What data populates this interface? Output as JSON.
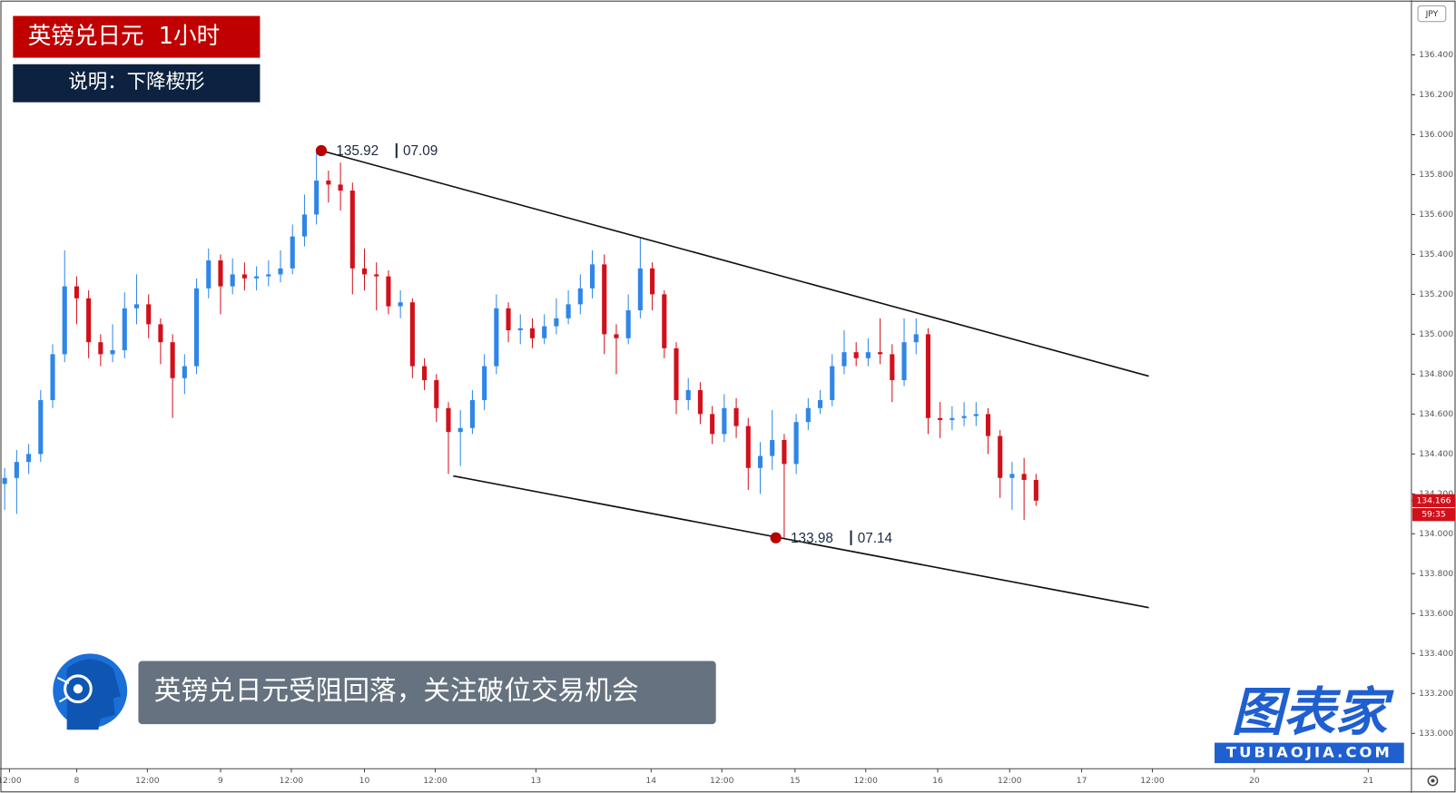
{
  "chart_data": {
    "type": "candlestick",
    "title": "英镑兑日元  1小时",
    "subtitle": "说明：下降楔形",
    "caption": "英镑兑日元受阻回落，关注破位交易机会",
    "brand": "图表家",
    "brand_url": "TUBIAOJIA.COM",
    "currency": "JPY",
    "countdown": "59:35",
    "last_price": {
      "value": 134.166,
      "label": "134.166"
    },
    "up_color": "#2f86e6",
    "down_color": "#d0111b",
    "x": [
      0,
      1,
      2,
      3,
      4,
      5,
      6,
      7,
      8,
      9,
      10,
      11,
      12,
      13,
      14,
      15,
      16,
      17,
      18,
      19,
      20,
      21,
      22,
      23,
      24,
      25,
      26,
      27,
      28,
      29,
      30,
      31,
      32,
      33,
      34,
      35,
      36,
      37,
      38,
      39,
      40,
      41,
      42,
      43,
      44,
      45,
      46,
      47,
      48,
      49,
      50,
      51,
      52,
      53,
      54,
      55,
      56,
      57,
      58,
      59,
      60,
      61,
      62,
      63,
      64,
      65,
      66,
      67,
      68,
      69,
      70,
      71,
      72,
      73,
      74,
      75,
      76,
      77,
      78,
      79,
      80,
      81,
      82,
      83,
      84,
      85,
      86
    ],
    "open": [
      134.25,
      134.28,
      134.36,
      134.4,
      134.67,
      134.9,
      135.24,
      135.18,
      134.96,
      134.9,
      134.92,
      135.13,
      135.15,
      135.05,
      134.96,
      134.78,
      134.84,
      135.23,
      135.37,
      135.24,
      135.3,
      135.28,
      135.29,
      135.3,
      135.33,
      135.49,
      135.6,
      135.77,
      135.75,
      135.72,
      135.33,
      135.3,
      135.29,
      135.14,
      135.16,
      134.84,
      134.77,
      134.63,
      134.51,
      134.53,
      134.67,
      134.84,
      135.13,
      135.02,
      135.03,
      134.98,
      135.04,
      135.08,
      135.15,
      135.23,
      135.35,
      135.0,
      134.98,
      135.12,
      135.33,
      135.2,
      134.93,
      134.67,
      134.72,
      134.6,
      134.5,
      134.63,
      134.54,
      134.33,
      134.39,
      134.47,
      134.35,
      134.56,
      134.63,
      134.67,
      134.84,
      134.91,
      134.88,
      134.91,
      134.9,
      134.77,
      134.96,
      135.0,
      134.58,
      134.57,
      134.58,
      134.59,
      134.6,
      134.49,
      134.28,
      134.3,
      134.27
    ],
    "high": [
      134.33,
      134.42,
      134.45,
      134.72,
      134.95,
      135.42,
      135.29,
      135.22,
      135.0,
      135.05,
      135.21,
      135.3,
      135.2,
      135.08,
      135.0,
      134.9,
      135.28,
      135.43,
      135.4,
      135.38,
      135.36,
      135.34,
      135.37,
      135.42,
      135.55,
      135.7,
      135.92,
      135.82,
      135.86,
      135.76,
      135.43,
      135.36,
      135.32,
      135.22,
      135.18,
      134.88,
      134.8,
      134.66,
      134.62,
      134.72,
      134.9,
      135.2,
      135.16,
      135.1,
      135.08,
      135.1,
      135.18,
      135.22,
      135.3,
      135.42,
      135.4,
      135.05,
      135.2,
      135.48,
      135.36,
      135.22,
      134.96,
      134.78,
      134.76,
      134.64,
      134.7,
      134.68,
      134.58,
      134.46,
      134.62,
      134.5,
      134.6,
      134.68,
      134.72,
      134.9,
      135.02,
      134.96,
      134.98,
      135.08,
      134.95,
      135.08,
      135.08,
      135.03,
      134.66,
      134.64,
      134.66,
      134.66,
      134.63,
      134.52,
      134.36,
      134.38,
      134.3
    ],
    "low": [
      134.12,
      134.1,
      134.3,
      134.36,
      134.63,
      134.86,
      135.05,
      134.88,
      134.84,
      134.86,
      134.88,
      135.05,
      134.98,
      134.85,
      134.58,
      134.7,
      134.8,
      135.18,
      135.1,
      135.2,
      135.22,
      135.22,
      135.24,
      135.26,
      135.3,
      135.44,
      135.55,
      135.66,
      135.62,
      135.2,
      135.22,
      135.12,
      135.1,
      135.08,
      134.78,
      134.72,
      134.56,
      134.3,
      134.34,
      134.5,
      134.62,
      134.8,
      134.96,
      134.95,
      134.93,
      134.95,
      135.0,
      135.05,
      135.1,
      135.18,
      134.9,
      134.8,
      134.95,
      135.08,
      135.12,
      134.88,
      134.6,
      134.62,
      134.55,
      134.45,
      134.46,
      134.48,
      134.22,
      134.2,
      134.32,
      133.98,
      134.3,
      134.52,
      134.6,
      134.64,
      134.8,
      134.84,
      134.84,
      134.85,
      134.66,
      134.74,
      134.9,
      134.5,
      134.48,
      134.52,
      134.54,
      134.54,
      134.4,
      134.18,
      134.12,
      134.07,
      134.14
    ],
    "close": [
      134.28,
      134.36,
      134.4,
      134.67,
      134.9,
      135.24,
      135.18,
      134.96,
      134.9,
      134.92,
      135.13,
      135.15,
      135.05,
      134.96,
      134.78,
      134.84,
      135.23,
      135.37,
      135.24,
      135.3,
      135.28,
      135.29,
      135.3,
      135.33,
      135.49,
      135.6,
      135.77,
      135.75,
      135.72,
      135.33,
      135.3,
      135.29,
      135.14,
      135.16,
      134.84,
      134.77,
      134.63,
      134.51,
      134.53,
      134.67,
      134.84,
      135.13,
      135.02,
      135.03,
      134.98,
      135.04,
      135.08,
      135.15,
      135.23,
      135.35,
      135.0,
      134.98,
      135.12,
      135.33,
      135.2,
      134.93,
      134.67,
      134.72,
      134.6,
      134.5,
      134.63,
      134.54,
      134.33,
      134.39,
      134.47,
      134.35,
      134.56,
      134.63,
      134.67,
      134.84,
      134.91,
      134.88,
      134.91,
      134.9,
      134.77,
      134.96,
      135.0,
      134.58,
      134.57,
      134.58,
      134.59,
      134.6,
      134.49,
      134.28,
      134.3,
      134.27,
      134.166
    ],
    "trendlines": [
      {
        "x": [
          26.4,
          95.4
        ],
        "y": [
          135.92,
          134.79
        ]
      },
      {
        "x": [
          37.4,
          95.4
        ],
        "y": [
          134.29,
          133.63
        ]
      }
    ],
    "annotations": [
      {
        "x": 26.4,
        "y": 135.92,
        "date": "07.09"
      },
      {
        "x": 64.3,
        "y": 133.98,
        "date": "07.14"
      }
    ],
    "xlim": [
      -0.39,
      117.3
    ],
    "xticks": [
      {
        "value": 0.4,
        "label": "12:00"
      },
      {
        "value": 6.0,
        "label": "8"
      },
      {
        "value": 11.9,
        "label": "12:00"
      },
      {
        "value": 18.0,
        "label": "9"
      },
      {
        "value": 23.9,
        "label": "12:00"
      },
      {
        "value": 30.0,
        "label": "10"
      },
      {
        "value": 35.9,
        "label": "12:00"
      },
      {
        "value": 44.3,
        "label": "13"
      },
      {
        "value": 53.9,
        "label": "14"
      },
      {
        "value": 59.8,
        "label": "12:00"
      },
      {
        "value": 65.9,
        "label": "15"
      },
      {
        "value": 71.8,
        "label": "12:00"
      },
      {
        "value": 77.8,
        "label": "16"
      },
      {
        "value": 83.8,
        "label": "12:00"
      },
      {
        "value": 89.8,
        "label": "17"
      },
      {
        "value": 95.7,
        "label": "12:00"
      },
      {
        "value": 104.2,
        "label": "20"
      },
      {
        "value": 113.7,
        "label": "21"
      }
    ],
    "ylim": [
      132.823,
      136.674
    ],
    "yticks": [
      {
        "value": 133.0,
        "label": "133.000"
      },
      {
        "value": 133.2,
        "label": "133.200"
      },
      {
        "value": 133.4,
        "label": "133.400"
      },
      {
        "value": 133.6,
        "label": "133.600"
      },
      {
        "value": 133.8,
        "label": "133.800"
      },
      {
        "value": 134.0,
        "label": "134.000"
      },
      {
        "value": 134.2,
        "label": "134.200"
      },
      {
        "value": 134.4,
        "label": "134.400"
      },
      {
        "value": 134.6,
        "label": "134.600"
      },
      {
        "value": 134.8,
        "label": "134.800"
      },
      {
        "value": 135.0,
        "label": "135.000"
      },
      {
        "value": 135.2,
        "label": "135.200"
      },
      {
        "value": 135.4,
        "label": "135.400"
      },
      {
        "value": 135.6,
        "label": "135.600"
      },
      {
        "value": 135.8,
        "label": "135.800"
      },
      {
        "value": 136.0,
        "label": "136.000"
      },
      {
        "value": 136.2,
        "label": "136.200"
      },
      {
        "value": 136.4,
        "label": "136.400"
      }
    ]
  }
}
